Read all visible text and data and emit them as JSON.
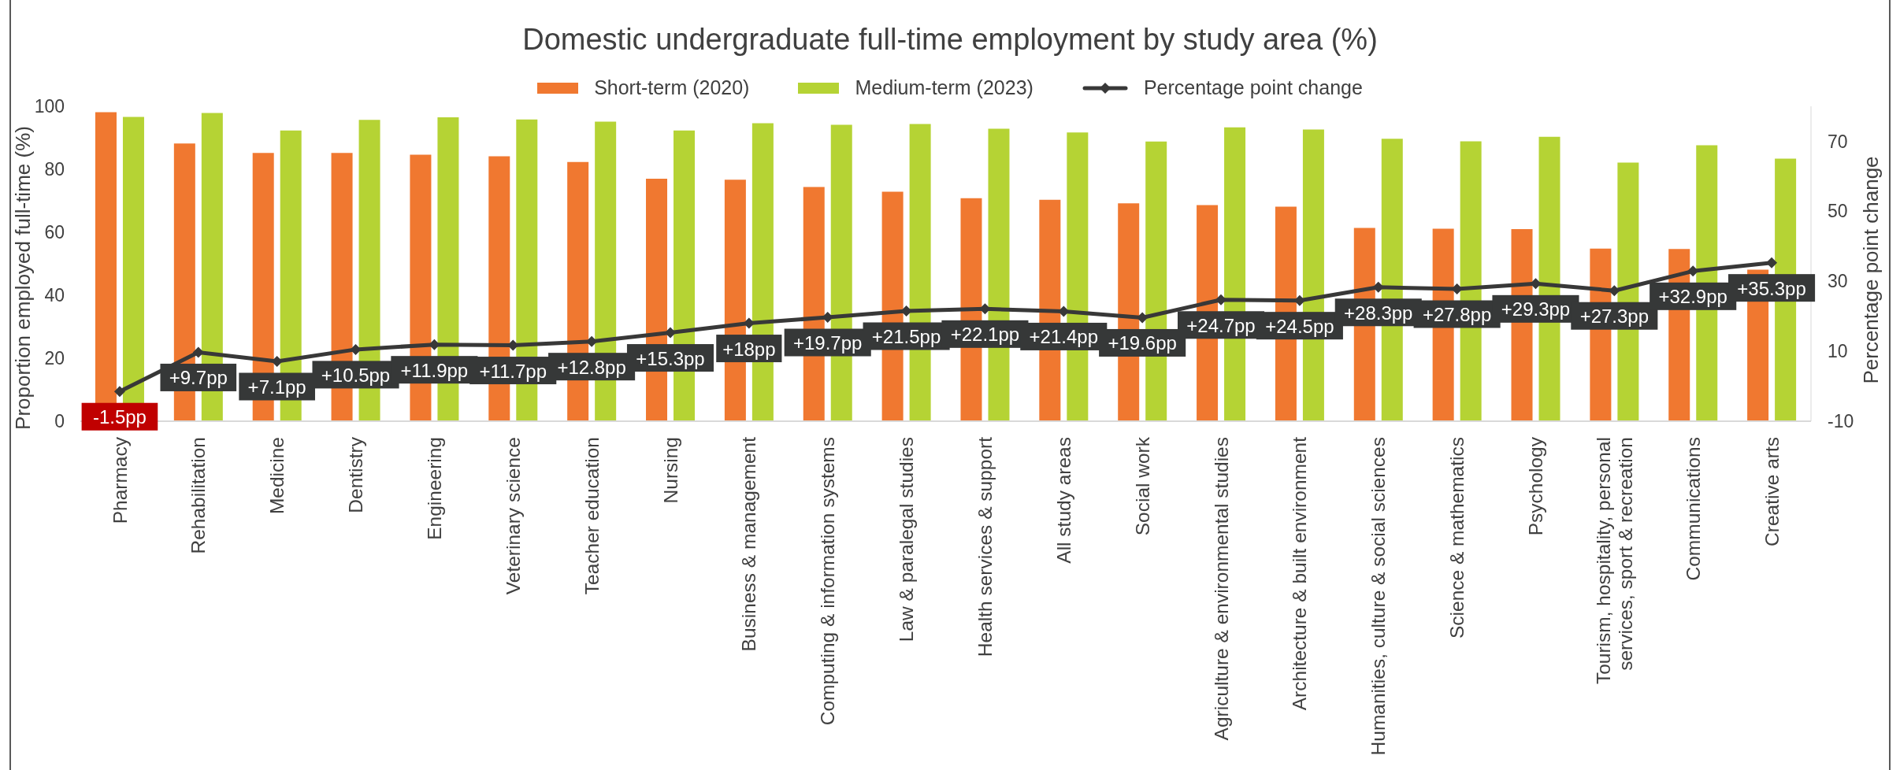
{
  "chart_data": {
    "type": "bar",
    "title": "Domestic undergraduate full-time employment by study area (%)",
    "ylabel": "Proportion employed full-time (%)",
    "y2label": "Percentage point change",
    "categories": [
      "Pharmacy",
      "Rehabilitation",
      "Medicine",
      "Dentistry",
      "Engineering",
      "Veterinary science",
      "Teacher education",
      "Nursing",
      "Business & management",
      "Computing & information systems",
      "Law & paralegal studies",
      "Health services & support",
      "All study areas",
      "Social work",
      "Agriculture & environmental studies",
      "Architecture & built environment",
      "Humanities, culture & social sciences",
      "Science & mathematics",
      "Psychology",
      "Tourism, hospitality, personal services, sport & recreation",
      "Communications",
      "Creative arts"
    ],
    "series": [
      {
        "name": "Short-term (2020)",
        "color": "#f07830",
        "values": [
          98.1,
          88.2,
          85.2,
          85.2,
          84.6,
          84.1,
          82.3,
          77.0,
          76.7,
          74.4,
          72.9,
          70.8,
          70.3,
          69.2,
          68.6,
          68.1,
          61.4,
          61.1,
          61.0,
          54.8,
          54.7,
          48.1
        ]
      },
      {
        "name": "Medium-term (2023)",
        "color": "#b5d334",
        "values": [
          96.6,
          97.9,
          92.3,
          95.7,
          96.5,
          95.8,
          95.1,
          92.3,
          94.6,
          94.1,
          94.4,
          92.9,
          91.7,
          88.8,
          93.3,
          92.6,
          89.7,
          88.9,
          90.3,
          82.1,
          87.6,
          83.4
        ]
      },
      {
        "name": "Percentage point change",
        "type": "line",
        "axis": "y2",
        "color": "#383838",
        "values": [
          -1.5,
          9.7,
          7.1,
          10.5,
          11.9,
          11.7,
          12.8,
          15.3,
          18,
          19.7,
          21.5,
          22.1,
          21.4,
          19.6,
          24.7,
          24.5,
          28.3,
          27.8,
          29.3,
          27.3,
          32.9,
          35.3
        ],
        "value_labels": [
          "-1.5pp",
          "+9.7pp",
          "+7.1pp",
          "+10.5pp",
          "+11.9pp",
          "+11.7pp",
          "+12.8pp",
          "+15.3pp",
          "+18pp",
          "+19.7pp",
          "+21.5pp",
          "+22.1pp",
          "+21.4pp",
          "+19.6pp",
          "+24.7pp",
          "+24.5pp",
          "+28.3pp",
          "+27.8pp",
          "+29.3pp",
          "+27.3pp",
          "+32.9pp",
          "+35.3pp"
        ]
      }
    ],
    "ylim": [
      0,
      100
    ],
    "yticks": [
      0,
      20,
      40,
      60,
      80,
      100
    ],
    "y2lim": [
      -10,
      80
    ],
    "y2ticks": [
      -10,
      10,
      30,
      50,
      70
    ],
    "marker": "diamond",
    "legend": "top"
  }
}
